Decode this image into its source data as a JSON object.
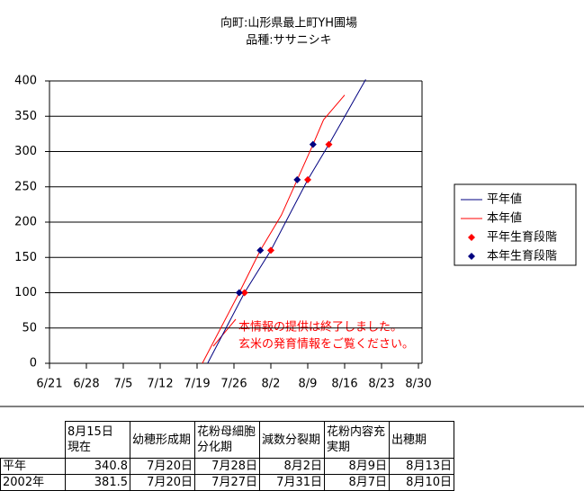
{
  "chart_data": {
    "type": "line",
    "title": [
      "向町:山形県最上町YH圃場",
      "品種:ササニシキ"
    ],
    "xlim": [
      172,
      242
    ],
    "xticks": [
      {
        "value": 172,
        "label": "6/21"
      },
      {
        "value": 179,
        "label": "6/28"
      },
      {
        "value": 186,
        "label": "7/5"
      },
      {
        "value": 193,
        "label": "7/12"
      },
      {
        "value": 200,
        "label": "7/19"
      },
      {
        "value": 207,
        "label": "7/26"
      },
      {
        "value": 214,
        "label": "8/2"
      },
      {
        "value": 221,
        "label": "8/9"
      },
      {
        "value": 228,
        "label": "8/16"
      },
      {
        "value": 235,
        "label": "8/23"
      },
      {
        "value": 242,
        "label": "8/30"
      }
    ],
    "ylim": [
      0,
      400
    ],
    "yticks": [
      0,
      50,
      100,
      150,
      200,
      250,
      300,
      350,
      400
    ],
    "grid": true,
    "legend": "right",
    "series": [
      {
        "name": "平年値",
        "type": "line",
        "color": "#000080",
        "x": [
          202,
          209,
          214,
          221,
          225,
          232
        ],
        "values": [
          0,
          100,
          160,
          260,
          310,
          402
        ]
      },
      {
        "name": "本年値",
        "type": "line",
        "color": "#ff0000",
        "x": [
          201,
          208,
          212,
          216,
          219,
          222,
          224,
          228
        ],
        "values": [
          0,
          100,
          160,
          210,
          260,
          310,
          345,
          380
        ]
      },
      {
        "name": "平年生育段階",
        "type": "scatter",
        "color": "#ff0000",
        "x": [
          209,
          214,
          221,
          225
        ],
        "values": [
          100,
          160,
          260,
          310
        ]
      },
      {
        "name": "本年生育段階",
        "type": "scatter",
        "color": "#000080",
        "x": [
          208,
          212,
          219,
          222
        ],
        "values": [
          100,
          160,
          260,
          310
        ]
      }
    ],
    "annotation": [
      "本情報の提供は終了しました。",
      "玄米の発育情報をご覧ください。"
    ]
  },
  "table": {
    "header": [
      [
        "8月15日",
        "現在"
      ],
      [
        "幼穂形成期"
      ],
      [
        "花粉母細胞分化期"
      ],
      [
        "減数分裂期"
      ],
      [
        "花粉内容充実期"
      ],
      [
        "出穂期"
      ]
    ],
    "rows": [
      [
        "平年",
        "340.8",
        "7月20日",
        "7月28日",
        "8月2日",
        "8月9日",
        "8月13日"
      ],
      [
        "2002年",
        "381.5",
        "7月20日",
        "7月27日",
        "7月31日",
        "8月7日",
        "8月10日"
      ]
    ]
  }
}
